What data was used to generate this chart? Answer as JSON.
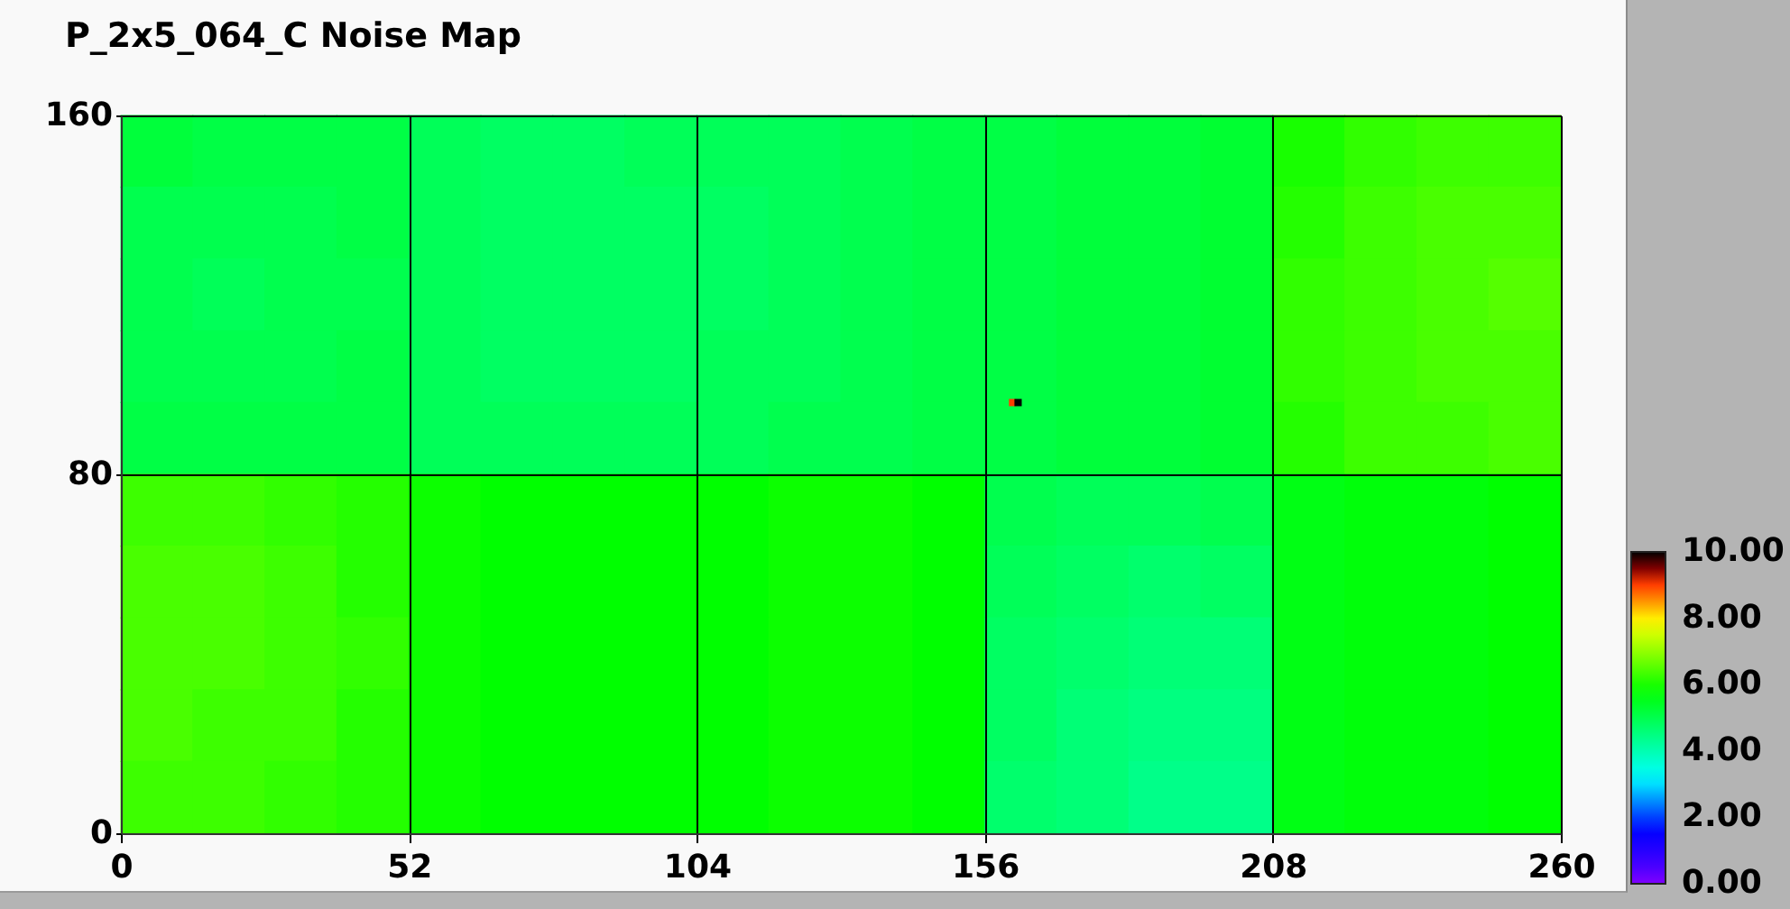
{
  "chart_data": {
    "type": "scatter",
    "title": "P_2x5_064_C Noise Map",
    "x": [
      6.5,
      19.5,
      32.5,
      45.5,
      58.5,
      71.5,
      84.5,
      97.5,
      110.5,
      123.5,
      136.5,
      149.5,
      162.5,
      175.5,
      188.5,
      201.5,
      214.5,
      227.5,
      240.5,
      253.5,
      6.5,
      19.5,
      32.5,
      45.5,
      58.5,
      71.5,
      84.5,
      97.5,
      110.5,
      123.5,
      136.5,
      149.5,
      162.5,
      175.5,
      188.5,
      201.5,
      214.5,
      227.5,
      240.5,
      253.5,
      6.5,
      19.5,
      32.5,
      45.5,
      58.5,
      71.5,
      84.5,
      97.5,
      110.5,
      123.5,
      136.5,
      149.5,
      162.5,
      175.5,
      188.5,
      201.5,
      214.5,
      227.5,
      240.5,
      253.5,
      6.5,
      19.5,
      32.5,
      45.5,
      58.5,
      71.5,
      84.5,
      97.5,
      110.5,
      123.5,
      136.5,
      149.5,
      162.5,
      175.5,
      188.5,
      201.5,
      214.5,
      227.5,
      240.5,
      253.5,
      6.5,
      19.5,
      32.5,
      45.5,
      58.5,
      71.5,
      84.5,
      97.5,
      110.5,
      123.5,
      136.5,
      149.5,
      162.5,
      175.5,
      188.5,
      201.5,
      214.5,
      227.5,
      240.5,
      253.5,
      6.5,
      19.5,
      32.5,
      45.5,
      58.5,
      71.5,
      84.5,
      97.5,
      110.5,
      123.5,
      136.5,
      149.5,
      162.5,
      175.5,
      188.5,
      201.5,
      214.5,
      227.5,
      240.5,
      253.5,
      6.5,
      19.5,
      32.5,
      45.5,
      58.5,
      71.5,
      84.5,
      97.5,
      110.5,
      123.5,
      136.5,
      149.5,
      162.5,
      175.5,
      188.5,
      201.5,
      214.5,
      227.5,
      240.5,
      253.5,
      6.5,
      19.5,
      32.5,
      45.5,
      58.5,
      71.5,
      84.5,
      97.5,
      110.5,
      123.5,
      136.5,
      149.5,
      162.5,
      175.5,
      188.5,
      201.5,
      214.5,
      227.5,
      240.5,
      253.5,
      6.5,
      19.5,
      32.5,
      45.5,
      58.5,
      71.5,
      84.5,
      97.5,
      110.5,
      123.5,
      136.5,
      149.5,
      162.5,
      175.5,
      188.5,
      201.5,
      214.5,
      227.5,
      240.5,
      253.5,
      6.5,
      19.5,
      32.5,
      45.5,
      58.5,
      71.5,
      84.5,
      97.5,
      110.5,
      123.5,
      136.5,
      149.5,
      162.5,
      175.5,
      188.5,
      201.5,
      214.5,
      227.5,
      240.5,
      253.5,
      161,
      162
    ],
    "values": [
      152,
      152,
      152,
      152,
      152,
      152,
      152,
      152,
      152,
      152,
      152,
      152,
      152,
      152,
      152,
      152,
      152,
      152,
      152,
      152,
      136,
      136,
      136,
      136,
      136,
      136,
      136,
      136,
      136,
      136,
      136,
      136,
      136,
      136,
      136,
      136,
      136,
      136,
      136,
      136,
      120,
      120,
      120,
      120,
      120,
      120,
      120,
      120,
      120,
      120,
      120,
      120,
      120,
      120,
      120,
      120,
      120,
      120,
      120,
      120,
      104,
      104,
      104,
      104,
      104,
      104,
      104,
      104,
      104,
      104,
      104,
      104,
      104,
      104,
      104,
      104,
      104,
      104,
      104,
      104,
      88,
      88,
      88,
      88,
      88,
      88,
      88,
      88,
      88,
      88,
      88,
      88,
      88,
      88,
      88,
      88,
      88,
      88,
      88,
      88,
      72,
      72,
      72,
      72,
      72,
      72,
      72,
      72,
      72,
      72,
      72,
      72,
      72,
      72,
      72,
      72,
      72,
      72,
      72,
      72,
      56,
      56,
      56,
      56,
      56,
      56,
      56,
      56,
      56,
      56,
      56,
      56,
      56,
      56,
      56,
      56,
      56,
      56,
      56,
      56,
      40,
      40,
      40,
      40,
      40,
      40,
      40,
      40,
      40,
      40,
      40,
      40,
      40,
      40,
      40,
      40,
      40,
      40,
      40,
      40,
      24,
      24,
      24,
      24,
      24,
      24,
      24,
      24,
      24,
      24,
      24,
      24,
      24,
      24,
      24,
      24,
      24,
      24,
      24,
      24,
      8,
      8,
      8,
      8,
      8,
      8,
      8,
      8,
      8,
      8,
      8,
      8,
      8,
      8,
      8,
      8,
      8,
      8,
      8,
      8,
      96,
      96
    ],
    "cvalues": [
      5.2,
      5.1,
      5.1,
      5.1,
      4.9,
      4.8,
      4.8,
      4.9,
      4.9,
      4.9,
      5.0,
      5.1,
      5.1,
      5.2,
      5.2,
      5.3,
      6.0,
      6.2,
      6.3,
      6.3,
      5.0,
      5.0,
      5.0,
      5.1,
      4.9,
      4.8,
      4.8,
      4.8,
      4.8,
      4.9,
      5.0,
      5.1,
      5.1,
      5.2,
      5.2,
      5.3,
      6.1,
      6.3,
      6.4,
      6.4,
      5.0,
      4.9,
      5.0,
      5.0,
      4.9,
      4.8,
      4.8,
      4.8,
      4.8,
      4.9,
      5.0,
      5.1,
      5.1,
      5.2,
      5.2,
      5.3,
      6.2,
      6.3,
      6.4,
      6.5,
      5.0,
      5.0,
      5.0,
      5.1,
      4.9,
      4.8,
      4.8,
      4.8,
      4.9,
      4.9,
      5.0,
      5.1,
      5.1,
      5.2,
      5.2,
      5.3,
      6.2,
      6.3,
      6.4,
      6.4,
      5.1,
      5.1,
      5.1,
      5.1,
      4.9,
      4.9,
      4.9,
      4.9,
      4.9,
      5.0,
      5.0,
      5.1,
      5.1,
      5.2,
      5.2,
      5.3,
      6.1,
      6.3,
      6.3,
      6.4,
      6.3,
      6.3,
      6.2,
      6.1,
      5.9,
      5.8,
      5.8,
      5.8,
      5.8,
      5.9,
      5.9,
      5.8,
      5.0,
      4.9,
      4.9,
      5.0,
      5.6,
      5.7,
      5.7,
      5.8,
      6.4,
      6.4,
      6.3,
      6.1,
      5.9,
      5.8,
      5.8,
      5.8,
      5.8,
      5.9,
      5.9,
      5.8,
      4.9,
      4.8,
      4.7,
      4.8,
      5.6,
      5.7,
      5.7,
      5.8,
      6.4,
      6.4,
      6.3,
      6.2,
      5.9,
      5.8,
      5.8,
      5.8,
      5.8,
      5.9,
      5.9,
      5.8,
      4.8,
      4.7,
      4.6,
      4.6,
      5.6,
      5.7,
      5.7,
      5.8,
      6.4,
      6.3,
      6.3,
      6.1,
      5.9,
      5.8,
      5.8,
      5.8,
      5.8,
      5.9,
      5.9,
      5.8,
      4.8,
      4.6,
      4.5,
      4.5,
      5.6,
      5.7,
      5.7,
      5.8,
      6.3,
      6.3,
      6.2,
      6.1,
      5.9,
      5.8,
      5.8,
      5.8,
      5.8,
      5.9,
      5.9,
      5.8,
      4.7,
      4.6,
      4.4,
      4.4,
      5.6,
      5.7,
      5.7,
      5.8,
      9,
      10
    ],
    "sizes": [
      1,
      1,
      1,
      1,
      1,
      1,
      1,
      1,
      1,
      1,
      1,
      1,
      1,
      1,
      1,
      1,
      1,
      1,
      1,
      1,
      1,
      1,
      1,
      1,
      1,
      1,
      1,
      1,
      1,
      1,
      1,
      1,
      1,
      1,
      1,
      1,
      1,
      1,
      1,
      1,
      1,
      1,
      1,
      1,
      1,
      1,
      1,
      1,
      1,
      1,
      1,
      1,
      1,
      1,
      1,
      1,
      1,
      1,
      1,
      1,
      1,
      1,
      1,
      1,
      1,
      1,
      1,
      1,
      1,
      1,
      1,
      1,
      1,
      1,
      1,
      1,
      1,
      1,
      1,
      1,
      1,
      1,
      1,
      1,
      1,
      1,
      1,
      1,
      1,
      1,
      1,
      1,
      1,
      1,
      1,
      1,
      1,
      1,
      1,
      1,
      1,
      1,
      1,
      1,
      1,
      1,
      1,
      1,
      1,
      1,
      1,
      1,
      1,
      1,
      1,
      1,
      1,
      1,
      1,
      1,
      1,
      1,
      1,
      1,
      1,
      1,
      1,
      1,
      1,
      1,
      1,
      1,
      1,
      1,
      1,
      1,
      1,
      1,
      1,
      1,
      1,
      1,
      1,
      1,
      1,
      1,
      1,
      1,
      1,
      1,
      1,
      1,
      1,
      1,
      1,
      1,
      1,
      1,
      1,
      1,
      1,
      1,
      1,
      1,
      1,
      1,
      1,
      1,
      1,
      1,
      1,
      1,
      1,
      1,
      1,
      1,
      1,
      1,
      1,
      1,
      1,
      1,
      1,
      1,
      1,
      1,
      1,
      1,
      1,
      1,
      1,
      1,
      1,
      1,
      1,
      1,
      1,
      1,
      1,
      1,
      0.01,
      0.01
    ],
    "xlim": [
      0,
      260
    ],
    "xticks": [
      0,
      52,
      104,
      156,
      208,
      260
    ],
    "ylim": [
      0,
      160
    ],
    "yticks": [
      0,
      80,
      160
    ],
    "clim": [
      0,
      10
    ],
    "cticks": [
      {
        "value": 0,
        "label": "0.00"
      },
      {
        "value": 2,
        "label": "2.00"
      },
      {
        "value": 4,
        "label": "4.00"
      },
      {
        "value": 6,
        "label": "6.00"
      },
      {
        "value": 8,
        "label": "8.00"
      },
      {
        "value": 10,
        "label": "10.00"
      }
    ],
    "grid": true,
    "marker": "square"
  }
}
